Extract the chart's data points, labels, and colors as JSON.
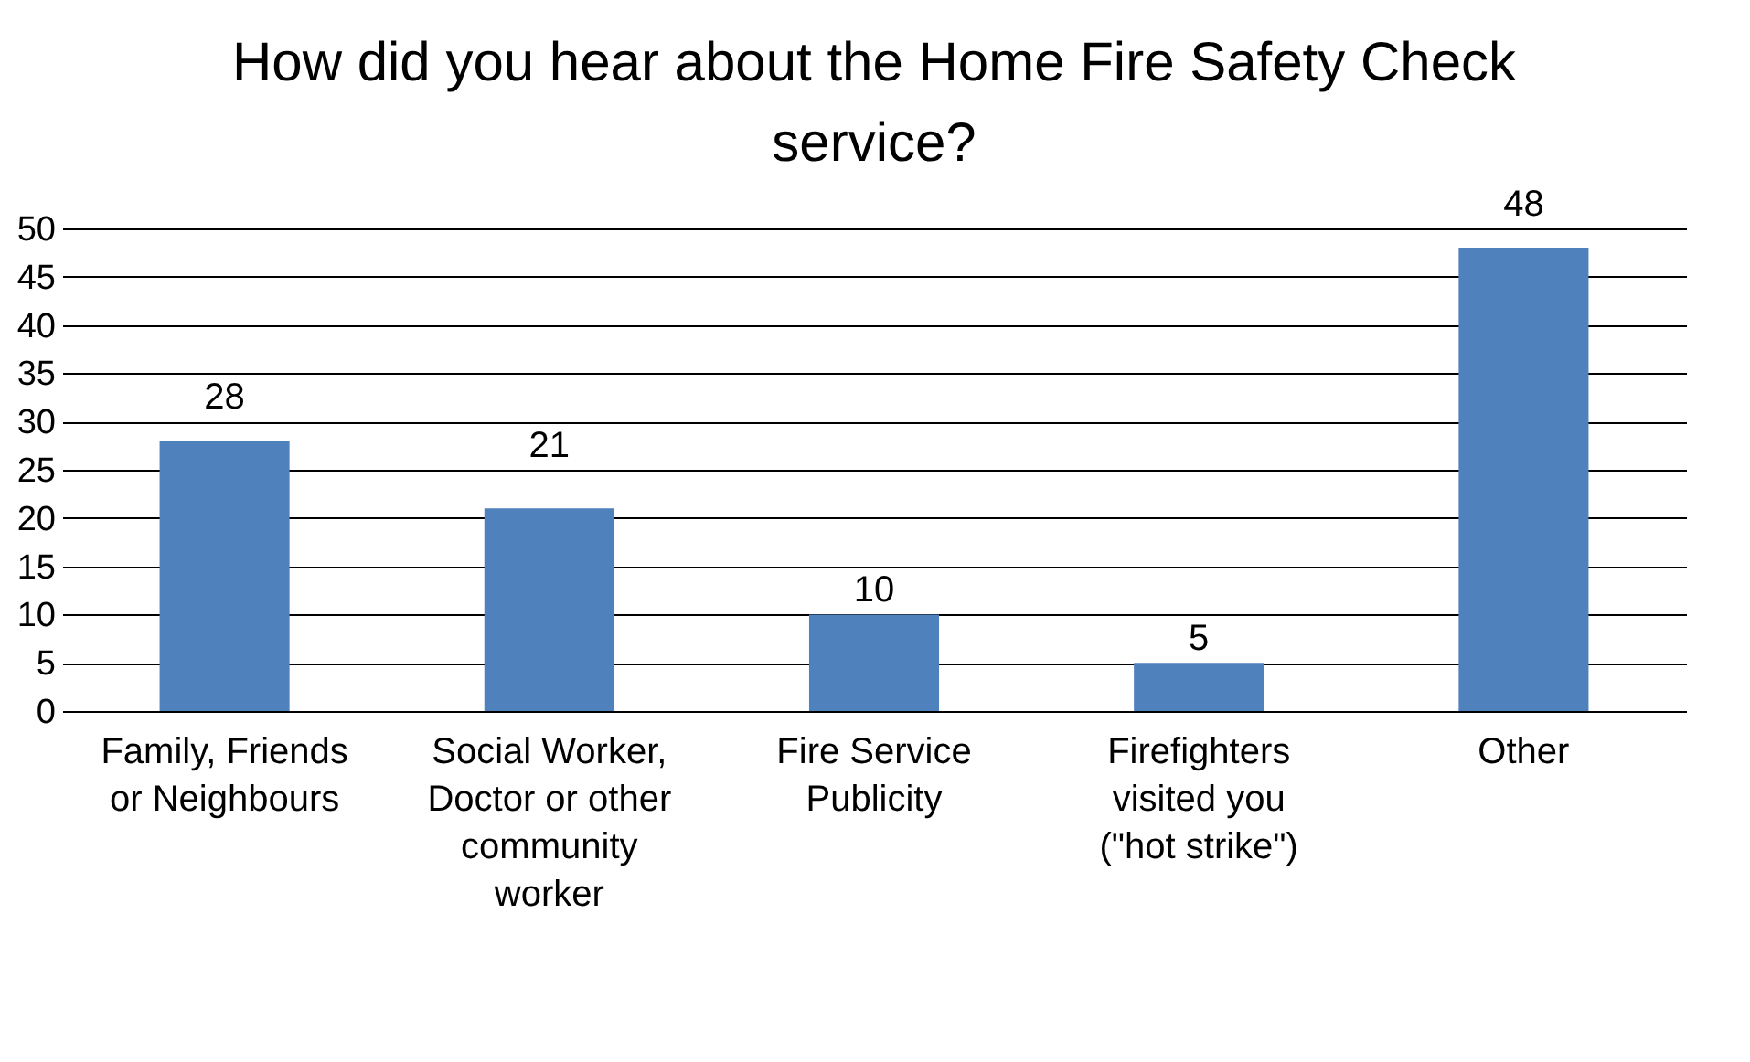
{
  "chart_data": {
    "type": "bar",
    "title": "How did you hear about the Home Fire Safety Check service?",
    "categories": [
      "Family, Friends or Neighbours",
      "Social Worker, Doctor or other community worker",
      "Fire Service Publicity",
      "Firefighters visited you (\"hot strike\")",
      "Other"
    ],
    "values": [
      28,
      21,
      10,
      5,
      48
    ],
    "color": "#4f81bd",
    "ylim": [
      0,
      50
    ],
    "yticks": [
      0,
      5,
      10,
      15,
      20,
      25,
      30,
      35,
      40,
      45,
      50
    ],
    "grid": "y",
    "data_labels": true
  }
}
